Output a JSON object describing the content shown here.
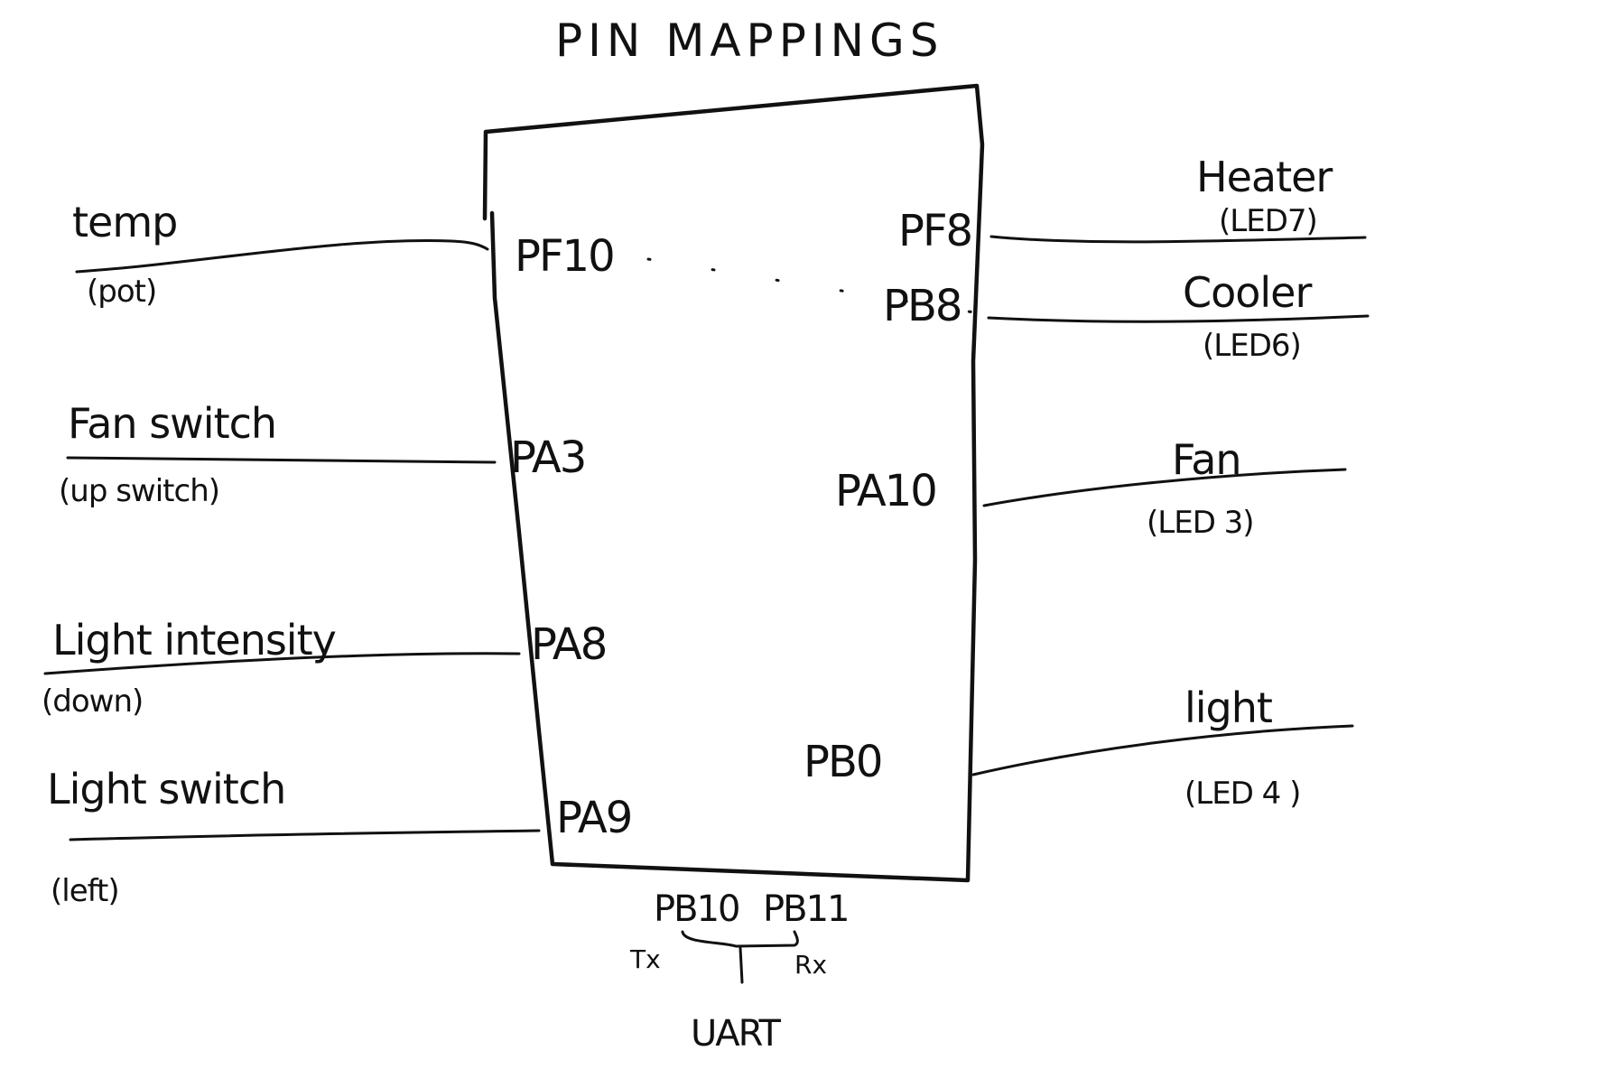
{
  "title": "PIN MAPPINGS",
  "left_inputs": [
    {
      "label": "temp",
      "sub": "(pot)",
      "pin": "PF10"
    },
    {
      "label": "Fan switch",
      "sub": "(up switch)",
      "pin": "PA3"
    },
    {
      "label": "Light intensity",
      "sub": "(down)",
      "pin": "PA8"
    },
    {
      "label": "Light switch",
      "sub": "(left)",
      "pin": "PA9"
    }
  ],
  "right_outputs": [
    {
      "label": "Heater",
      "sub": "(LED7)",
      "pin": "PF8"
    },
    {
      "label": "Cooler",
      "sub": "(LED6)",
      "pin": "PB8"
    },
    {
      "label": "Fan",
      "sub": "(LED 3)",
      "pin": "PA10"
    },
    {
      "label": "light",
      "sub": "(LED 4 )",
      "pin": "PB0"
    }
  ],
  "uart": {
    "label": "UART",
    "tx_pin": "PB10",
    "rx_pin": "PB11",
    "tx_label": "Tx",
    "rx_label": "Rx"
  }
}
